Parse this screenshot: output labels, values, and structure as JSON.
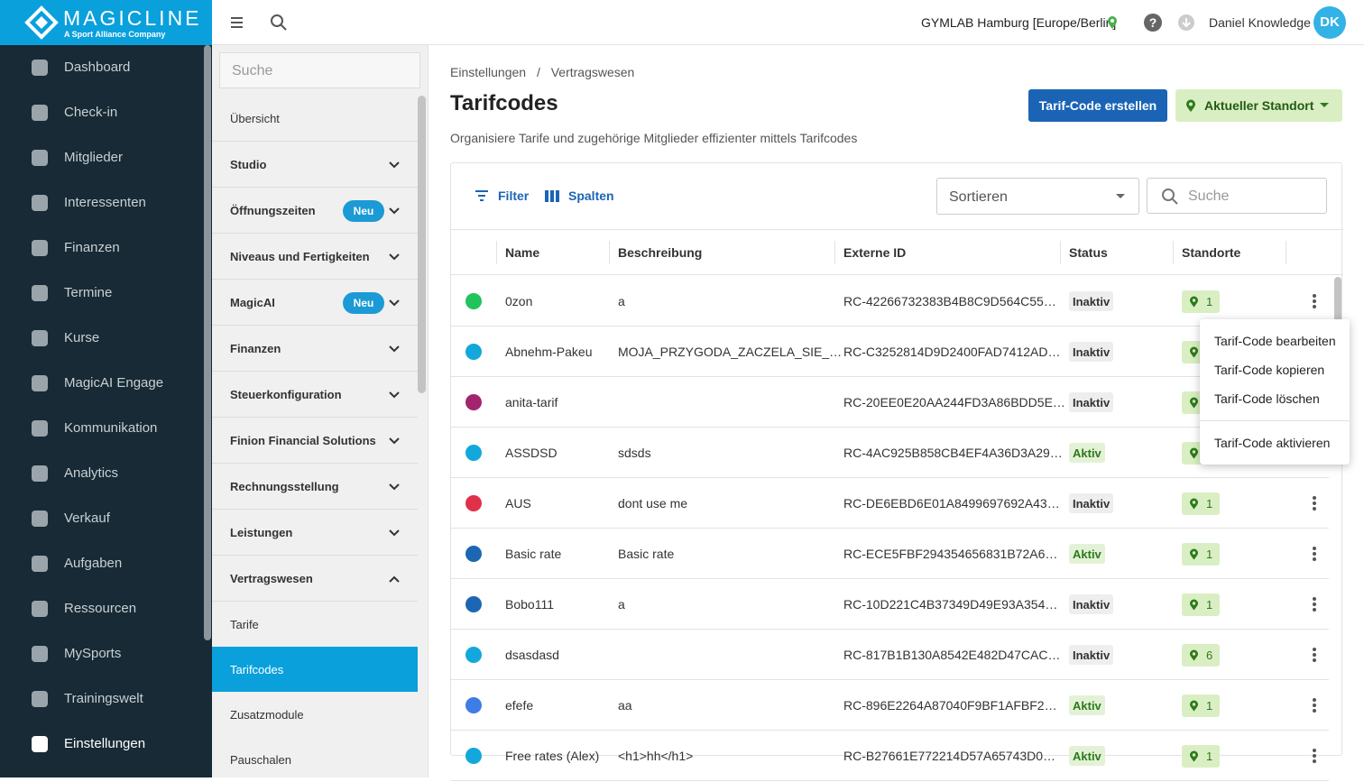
{
  "brand": {
    "name": "MAGICLINE",
    "tagline": "A Sport Alliance Company"
  },
  "topbar": {
    "location": "GYMLAB Hamburg [Europe/Berlin]",
    "user": "Daniel Knowledge",
    "initials": "DK"
  },
  "nav": {
    "items": [
      "Dashboard",
      "Check-in",
      "Mitglieder",
      "Interessenten",
      "Finanzen",
      "Termine",
      "Kurse",
      "MagicAI Engage",
      "Kommunikation",
      "Analytics",
      "Verkauf",
      "Aufgaben",
      "Ressourcen",
      "MySports",
      "Trainingswelt",
      "Einstellungen"
    ],
    "active": 15
  },
  "settings_menu": {
    "search_placeholder": "Suche",
    "items": [
      {
        "label": "Übersicht"
      },
      {
        "label": "Studio",
        "chevron": true
      },
      {
        "label": "Öffnungszeiten",
        "badge": "Neu",
        "chevron": true
      },
      {
        "label": "Niveaus und Fertigkeiten",
        "chevron": true
      },
      {
        "label": "MagicAI",
        "badge": "Neu",
        "chevron": true
      },
      {
        "label": "Finanzen",
        "chevron": true
      },
      {
        "label": "Steuerkonfiguration",
        "chevron": true
      },
      {
        "label": "Finion Financial Solutions",
        "chevron": true
      },
      {
        "label": "Rechnungsstellung",
        "chevron": true
      },
      {
        "label": "Leistungen",
        "chevron": true
      },
      {
        "label": "Vertragswesen",
        "chevron": true,
        "expanded": true
      }
    ],
    "subitems": [
      "Tarife",
      "Tarifcodes",
      "Zusatzmodule",
      "Pauschalen"
    ],
    "active_subitem": 1
  },
  "breadcrumb": {
    "items": [
      "Einstellungen",
      "Vertragswesen"
    ],
    "separator": "/"
  },
  "header": {
    "title": "Tarifcodes",
    "description": "Organisiere Tarife und zugehörige Mitglieder effizienter mittels Tarifcodes",
    "create_button": "Tarif-Code erstellen",
    "location_button": "Aktueller Standort"
  },
  "toolbar": {
    "filter": "Filter",
    "columns": "Spalten",
    "sort_placeholder": "Sortieren",
    "search_placeholder": "Suche"
  },
  "table": {
    "columns": [
      "Name",
      "Beschreibung",
      "Externe ID",
      "Status",
      "Standorte"
    ],
    "rows": [
      {
        "color": "#21c35b",
        "name": "0zon",
        "description": "a",
        "external_id": "RC-42266732383B4B8C9D564C55…",
        "status": "Inaktiv",
        "locations": 1
      },
      {
        "color": "#12a8db",
        "name": "Abnehm-Pakeu",
        "description": "MOJA_PRZYGODA_ZACZELA_SIE_…",
        "external_id": "RC-C3252814D9D2400FAD7412AD…",
        "status": "Inaktiv",
        "locations": null
      },
      {
        "color": "#a3246e",
        "name": "anita-tarif",
        "description": null,
        "external_id": "RC-20EE0E20AA244FD3A86BDD5E…",
        "status": "Inaktiv",
        "locations": null
      },
      {
        "color": "#12a8db",
        "name": "ASSDSD",
        "description": "sdsds",
        "external_id": "RC-4AC925B858CB4EF4A36D3A29…",
        "status": "Aktiv",
        "locations": null
      },
      {
        "color": "#e0304a",
        "name": "AUS",
        "description": "dont use me",
        "external_id": "RC-DE6EBD6E01A8499697692A43…",
        "status": "Inaktiv",
        "locations": 1
      },
      {
        "color": "#1d66b4",
        "name": "Basic rate",
        "description": "Basic rate",
        "external_id": "RC-ECE5FBF294354656831B72A6…",
        "status": "Aktiv",
        "locations": 1
      },
      {
        "color": "#1d66b4",
        "name": "Bobo111",
        "description": "a",
        "external_id": "RC-10D221C4B37349D49E93A354…",
        "status": "Inaktiv",
        "locations": 1
      },
      {
        "color": "#12a8db",
        "name": "dsasdasd",
        "description": null,
        "external_id": "RC-817B1B130A8542E482D47CAC…",
        "status": "Inaktiv",
        "locations": 6
      },
      {
        "color": "#3e7ce6",
        "name": "efefe",
        "description": "aa",
        "external_id": "RC-896E2264A87040F9BF1AFBF2…",
        "status": "Aktiv",
        "locations": 1
      },
      {
        "color": "#12a8db",
        "name": "Free rates (Alex)",
        "description": "<h1>hh</h1>",
        "external_id": "RC-B27661E772214D57A65743D0…",
        "status": "Aktiv",
        "locations": 1
      }
    ]
  },
  "context_menu": {
    "items": [
      "Tarif-Code bearbeiten",
      "Tarif-Code kopieren",
      "Tarif-Code löschen",
      "Tarif-Code aktivieren"
    ]
  }
}
